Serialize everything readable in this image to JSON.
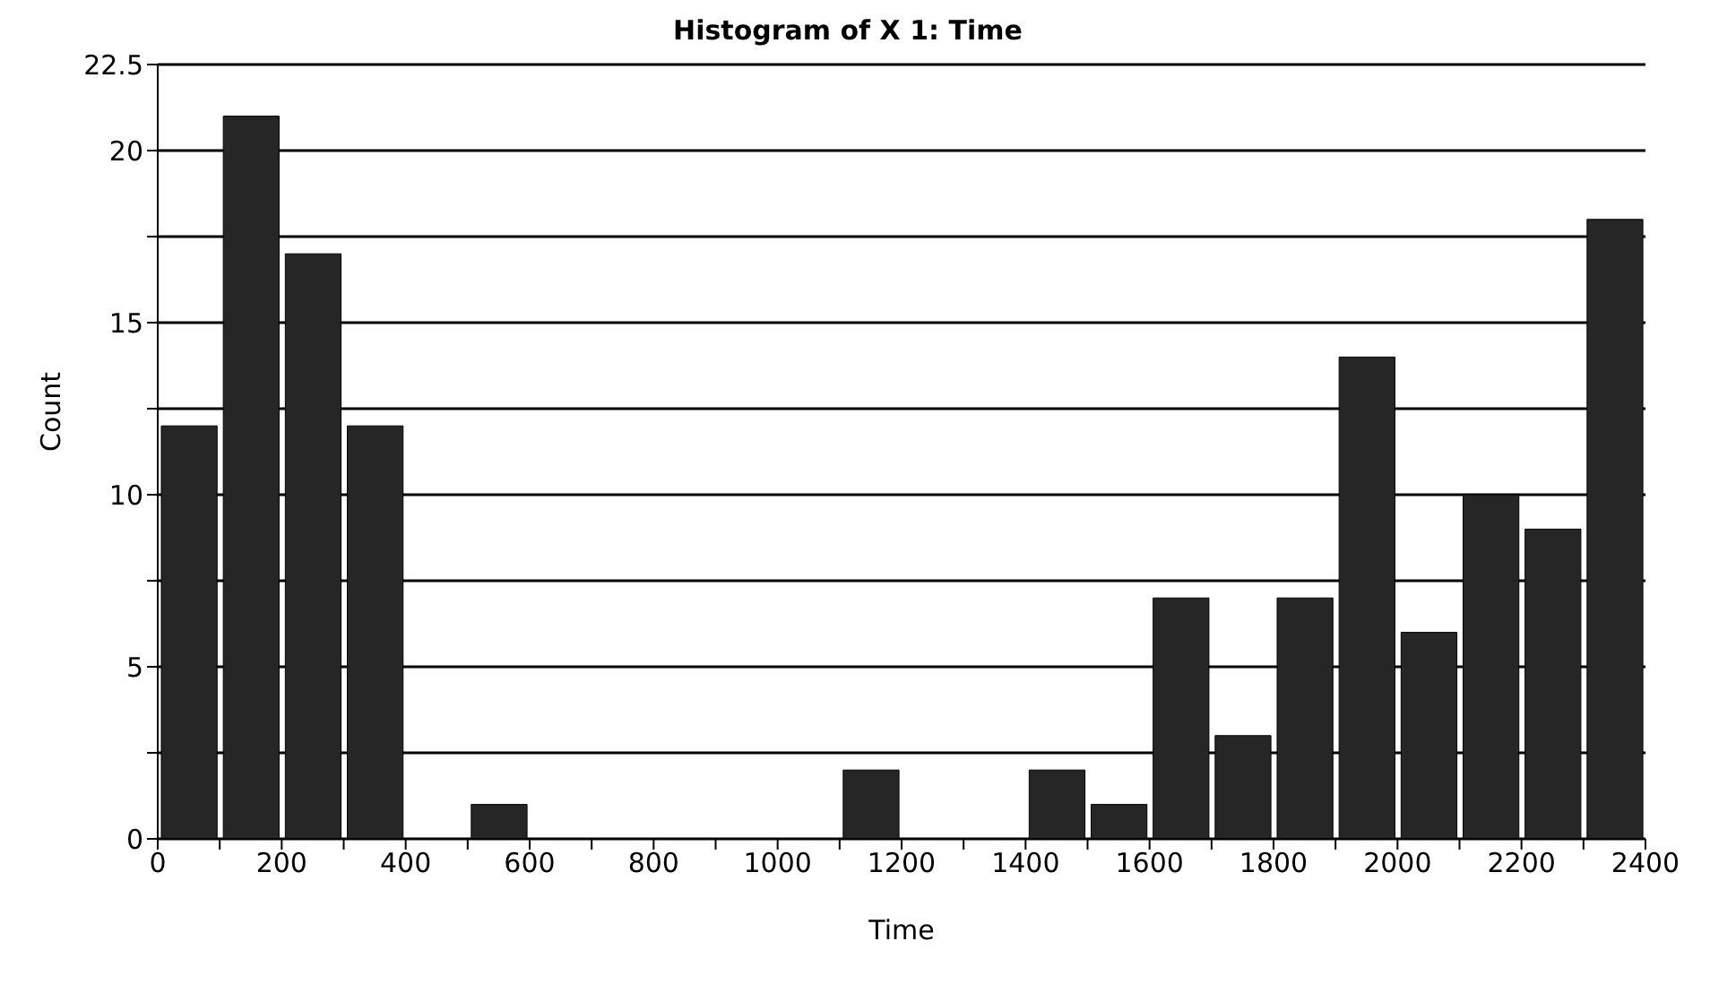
{
  "chart_data": {
    "type": "histogram",
    "title": "Histogram of X 1: Time",
    "xlabel": "Time",
    "ylabel": "Count",
    "bins": [
      0,
      100,
      200,
      300,
      400,
      500,
      600,
      700,
      800,
      900,
      1000,
      1100,
      1200,
      1300,
      1400,
      1500,
      1600,
      1700,
      1800,
      1900,
      2000,
      2100,
      2200,
      2300,
      2400
    ],
    "values": [
      12,
      21,
      17,
      12,
      0,
      1,
      0,
      0,
      0,
      0,
      0,
      2,
      0,
      0,
      2,
      1,
      7,
      3,
      7,
      14,
      6,
      10,
      9,
      18
    ],
    "color": "#262626",
    "xlim": [
      0,
      2400
    ],
    "xticks": [
      0,
      {
        "value": 100,
        "label": null
      },
      200,
      {
        "value": 300,
        "label": null
      },
      400,
      {
        "value": 500,
        "label": null
      },
      600,
      {
        "value": 700,
        "label": null
      },
      800,
      {
        "value": 900,
        "label": null
      },
      1000,
      {
        "value": 1100,
        "label": null
      },
      1200,
      {
        "value": 1300,
        "label": null
      },
      1400,
      {
        "value": 1500,
        "label": null
      },
      1600,
      {
        "value": 1700,
        "label": null
      },
      1800,
      {
        "value": 1900,
        "label": null
      },
      2000,
      {
        "value": 2100,
        "label": null
      },
      2200,
      {
        "value": 2300,
        "label": null
      },
      2400
    ],
    "ylim": [
      0,
      22.5
    ],
    "yticks": [
      0,
      {
        "value": 2.5,
        "label": null
      },
      5,
      {
        "value": 7.5,
        "label": null
      },
      10,
      {
        "value": 12.5,
        "label": null
      },
      15,
      {
        "value": 17.5,
        "label": null
      },
      20,
      22.5
    ],
    "grid": "y"
  }
}
